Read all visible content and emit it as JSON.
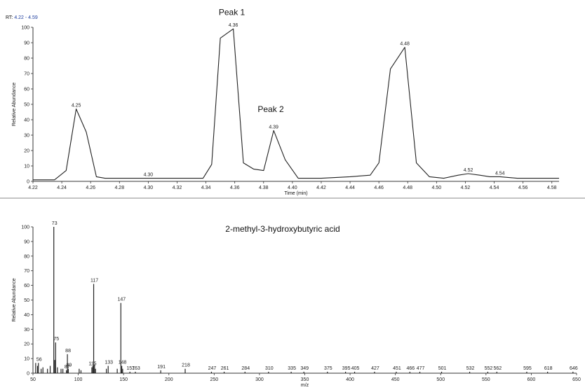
{
  "chart_data": [
    {
      "type": "line",
      "rt_label": "RT:",
      "rt_range": "4.22 - 4.59",
      "xlabel": "Time (min)",
      "ylabel": "Relative Abundance",
      "xlim": [
        4.22,
        4.585
      ],
      "ylim": [
        0,
        100
      ],
      "x_ticks": [
        "4.22",
        "4.24",
        "4.26",
        "4.28",
        "4.30",
        "4.32",
        "4.34",
        "4.36",
        "4.38",
        "4.40",
        "4.42",
        "4.44",
        "4.46",
        "4.48",
        "4.50",
        "4.52",
        "4.54",
        "4.56",
        "4.58"
      ],
      "y_ticks": [
        "0",
        "10",
        "20",
        "30",
        "40",
        "50",
        "60",
        "70",
        "80",
        "90",
        "100"
      ],
      "points": [
        [
          4.22,
          1
        ],
        [
          4.23,
          1
        ],
        [
          4.235,
          1
        ],
        [
          4.243,
          7
        ],
        [
          4.25,
          47
        ],
        [
          4.257,
          32
        ],
        [
          4.264,
          3
        ],
        [
          4.27,
          2
        ],
        [
          4.28,
          2
        ],
        [
          4.3,
          2
        ],
        [
          4.32,
          2
        ],
        [
          4.338,
          2
        ],
        [
          4.344,
          11
        ],
        [
          4.35,
          93
        ],
        [
          4.359,
          99
        ],
        [
          4.366,
          12
        ],
        [
          4.373,
          8
        ],
        [
          4.38,
          7
        ],
        [
          4.387,
          33
        ],
        [
          4.395,
          14
        ],
        [
          4.404,
          2
        ],
        [
          4.42,
          2
        ],
        [
          4.44,
          3
        ],
        [
          4.454,
          4
        ],
        [
          4.46,
          12
        ],
        [
          4.468,
          73
        ],
        [
          4.478,
          87
        ],
        [
          4.486,
          12
        ],
        [
          4.495,
          3
        ],
        [
          4.505,
          2
        ],
        [
          4.515,
          4
        ],
        [
          4.522,
          5
        ],
        [
          4.53,
          4
        ],
        [
          4.537,
          3
        ],
        [
          4.544,
          3
        ],
        [
          4.556,
          2
        ],
        [
          4.585,
          2
        ]
      ],
      "peak_labels": [
        {
          "x": 4.25,
          "y": 47,
          "text": "4.25"
        },
        {
          "x": 4.3,
          "y": 2,
          "text": "4.30"
        },
        {
          "x": 4.359,
          "y": 99,
          "text": "4.36"
        },
        {
          "x": 4.387,
          "y": 33,
          "text": "4.39"
        },
        {
          "x": 4.478,
          "y": 87,
          "text": "4.48"
        },
        {
          "x": 4.522,
          "y": 5,
          "text": "4.52"
        },
        {
          "x": 4.544,
          "y": 3,
          "text": "4.54"
        }
      ],
      "annotations": [
        {
          "text": "Peak 1",
          "x": 4.358,
          "y": 108
        },
        {
          "text": "Peak 2",
          "x": 4.385,
          "y": 45
        }
      ]
    },
    {
      "type": "bar",
      "title": "2-methyl-3-hydroxybutyric acid",
      "xlabel": "m/z",
      "ylabel": "Relative Abundance",
      "xlim": [
        50,
        650
      ],
      "ylim": [
        0,
        100
      ],
      "x_ticks": [
        "50",
        "100",
        "150",
        "200",
        "250",
        "300",
        "350",
        "400",
        "450",
        "500",
        "550",
        "600",
        "650"
      ],
      "y_ticks": [
        "0",
        "10",
        "20",
        "30",
        "40",
        "50",
        "60",
        "70",
        "80",
        "90",
        "100"
      ],
      "peaks": [
        {
          "mz": 53,
          "ab": 7
        },
        {
          "mz": 55,
          "ab": 5
        },
        {
          "mz": 56,
          "ab": 7,
          "label": "56"
        },
        {
          "mz": 59,
          "ab": 3
        },
        {
          "mz": 61,
          "ab": 4
        },
        {
          "mz": 66,
          "ab": 3
        },
        {
          "mz": 69,
          "ab": 5
        },
        {
          "mz": 73,
          "ab": 100,
          "label": "73"
        },
        {
          "mz": 74,
          "ab": 9
        },
        {
          "mz": 75,
          "ab": 21,
          "label": "75"
        },
        {
          "mz": 77,
          "ab": 4
        },
        {
          "mz": 81,
          "ab": 3
        },
        {
          "mz": 83,
          "ab": 3
        },
        {
          "mz": 87,
          "ab": 2,
          "label": "87"
        },
        {
          "mz": 88,
          "ab": 13,
          "label": "88"
        },
        {
          "mz": 89,
          "ab": 3,
          "label": "89"
        },
        {
          "mz": 101,
          "ab": 3
        },
        {
          "mz": 103,
          "ab": 2
        },
        {
          "mz": 115,
          "ab": 4,
          "label": "115"
        },
        {
          "mz": 116,
          "ab": 5
        },
        {
          "mz": 117,
          "ab": 61,
          "label": "117"
        },
        {
          "mz": 118,
          "ab": 6
        },
        {
          "mz": 119,
          "ab": 3
        },
        {
          "mz": 131,
          "ab": 3
        },
        {
          "mz": 133,
          "ab": 5,
          "label": "133"
        },
        {
          "mz": 143,
          "ab": 3
        },
        {
          "mz": 147,
          "ab": 48,
          "label": "147"
        },
        {
          "mz": 148,
          "ab": 5,
          "label": "148"
        },
        {
          "mz": 149,
          "ab": 3
        },
        {
          "mz": 157,
          "ab": 1,
          "label": "157"
        },
        {
          "mz": 163,
          "ab": 1,
          "label": "163"
        },
        {
          "mz": 191,
          "ab": 2,
          "label": "191"
        },
        {
          "mz": 218,
          "ab": 3,
          "label": "218"
        },
        {
          "mz": 247,
          "ab": 1,
          "label": "247"
        },
        {
          "mz": 261,
          "ab": 1,
          "label": "261"
        },
        {
          "mz": 284,
          "ab": 1,
          "label": "284"
        },
        {
          "mz": 310,
          "ab": 1,
          "label": "310"
        },
        {
          "mz": 335,
          "ab": 1,
          "label": "335"
        },
        {
          "mz": 349,
          "ab": 1,
          "label": "349"
        },
        {
          "mz": 375,
          "ab": 1,
          "label": "375"
        },
        {
          "mz": 395,
          "ab": 1,
          "label": "395"
        },
        {
          "mz": 405,
          "ab": 1,
          "label": "405"
        },
        {
          "mz": 427,
          "ab": 1,
          "label": "427"
        },
        {
          "mz": 451,
          "ab": 1,
          "label": "451"
        },
        {
          "mz": 466,
          "ab": 1,
          "label": "466"
        },
        {
          "mz": 477,
          "ab": 1,
          "label": "477"
        },
        {
          "mz": 501,
          "ab": 1,
          "label": "501"
        },
        {
          "mz": 532,
          "ab": 1,
          "label": "532"
        },
        {
          "mz": 552,
          "ab": 1,
          "label": "552"
        },
        {
          "mz": 562,
          "ab": 1,
          "label": "562"
        },
        {
          "mz": 595,
          "ab": 1,
          "label": "595"
        },
        {
          "mz": 618,
          "ab": 1,
          "label": "618"
        },
        {
          "mz": 646,
          "ab": 1,
          "label": "646"
        }
      ]
    }
  ]
}
